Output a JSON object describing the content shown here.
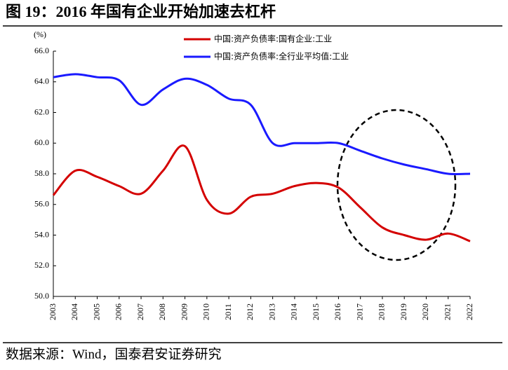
{
  "chart_data": {
    "type": "line",
    "title": "图 19：2016 年国有企业开始加速去杠杆",
    "y_label": "(%)",
    "source": "数据来源：Wind，国泰君安证券研究",
    "categories": [
      "2003",
      "2004",
      "2005",
      "2006",
      "2007",
      "2008",
      "2009",
      "2010",
      "2011",
      "2012",
      "2013",
      "2014",
      "2015",
      "2016",
      "2017",
      "2018",
      "2019",
      "2020",
      "2021",
      "2022"
    ],
    "series": [
      {
        "name": "中国:资产负债率:国有企业:工业",
        "color": "#d40000",
        "values": [
          56.6,
          58.2,
          57.8,
          57.2,
          56.7,
          58.2,
          59.8,
          56.3,
          55.4,
          56.5,
          56.7,
          57.2,
          57.4,
          57.1,
          55.8,
          54.5,
          54.0,
          53.7,
          54.1,
          53.6
        ]
      },
      {
        "name": "中国:资产负债率:全行业平均值:工业",
        "color": "#1a1aff",
        "values": [
          64.3,
          64.5,
          64.3,
          64.1,
          62.5,
          63.5,
          64.2,
          63.8,
          62.9,
          62.5,
          60.0,
          60.0,
          60.0,
          60.0,
          59.5,
          59.0,
          58.6,
          58.3,
          58.0,
          58.0
        ]
      }
    ],
    "ylim": [
      50,
      66
    ],
    "yticks": [
      {
        "value": 50,
        "label": "50.0"
      },
      {
        "value": 52,
        "label": "52.0"
      },
      {
        "value": 54,
        "label": "54.0"
      },
      {
        "value": 56,
        "label": "56.0"
      },
      {
        "value": 58,
        "label": "58.0"
      },
      {
        "value": 60,
        "label": "60.0"
      },
      {
        "value": 62,
        "label": "62.0"
      },
      {
        "value": 64,
        "label": "64.0"
      },
      {
        "value": 66,
        "label": "66.0"
      }
    ]
  }
}
